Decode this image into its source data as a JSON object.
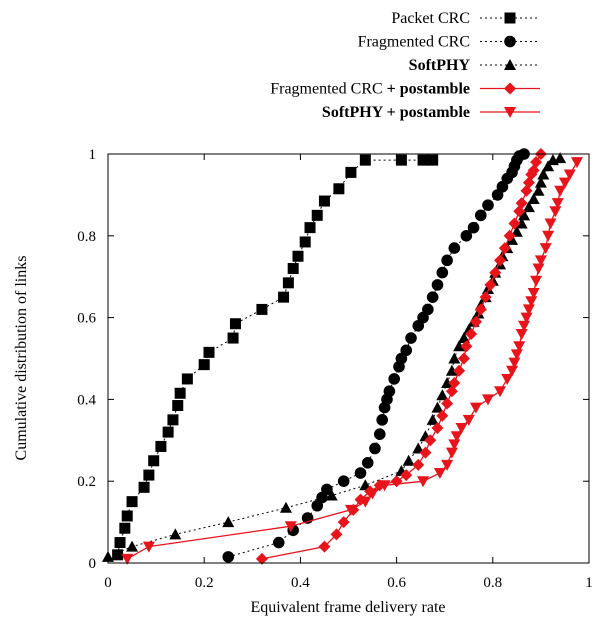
{
  "chart_data": {
    "type": "scatter",
    "title": "",
    "xlabel": "Equivalent frame delivery rate",
    "ylabel": "Cumulative distribution of links",
    "xlim": [
      0,
      1
    ],
    "ylim": [
      0,
      1
    ],
    "xticks": [
      "0",
      "0.2",
      "0.4",
      "0.6",
      "0.8",
      "1"
    ],
    "yticks": [
      "0",
      "0.2",
      "0.4",
      "0.6",
      "0.8",
      "1"
    ],
    "grid": false,
    "legend_position": "top-right",
    "series": [
      {
        "name": "Packet CRC",
        "legend_parts": [
          {
            "text": "Packet CRC",
            "bold": false
          }
        ],
        "marker": "square",
        "line": "dotted",
        "color": "#000000",
        "x": [
          0.02,
          0.025,
          0.035,
          0.04,
          0.05,
          0.075,
          0.085,
          0.095,
          0.11,
          0.125,
          0.135,
          0.145,
          0.15,
          0.165,
          0.2,
          0.21,
          0.26,
          0.265,
          0.32,
          0.365,
          0.375,
          0.385,
          0.395,
          0.41,
          0.42,
          0.435,
          0.45,
          0.48,
          0.505,
          0.535,
          0.61,
          0.655,
          0.675
        ],
        "y": [
          0.02,
          0.05,
          0.085,
          0.115,
          0.15,
          0.185,
          0.215,
          0.25,
          0.285,
          0.32,
          0.35,
          0.385,
          0.415,
          0.45,
          0.485,
          0.515,
          0.55,
          0.585,
          0.62,
          0.65,
          0.685,
          0.72,
          0.75,
          0.785,
          0.82,
          0.85,
          0.885,
          0.915,
          0.955,
          0.985,
          0.985,
          0.985,
          0.985
        ]
      },
      {
        "name": "Fragmented CRC",
        "legend_parts": [
          {
            "text": "Fragmented CRC",
            "bold": false
          }
        ],
        "marker": "circle",
        "line": "dotted",
        "color": "#000000",
        "x": [
          0.25,
          0.355,
          0.385,
          0.415,
          0.435,
          0.445,
          0.455,
          0.49,
          0.525,
          0.54,
          0.555,
          0.565,
          0.57,
          0.575,
          0.58,
          0.585,
          0.595,
          0.605,
          0.61,
          0.62,
          0.63,
          0.645,
          0.655,
          0.665,
          0.675,
          0.685,
          0.695,
          0.705,
          0.72,
          0.745,
          0.76,
          0.775,
          0.79,
          0.81,
          0.82,
          0.83,
          0.84,
          0.845,
          0.85,
          0.855,
          0.865
        ],
        "y": [
          0.015,
          0.05,
          0.08,
          0.11,
          0.14,
          0.16,
          0.18,
          0.2,
          0.22,
          0.245,
          0.28,
          0.315,
          0.35,
          0.38,
          0.4,
          0.42,
          0.45,
          0.48,
          0.5,
          0.52,
          0.55,
          0.58,
          0.6,
          0.62,
          0.65,
          0.68,
          0.71,
          0.74,
          0.77,
          0.8,
          0.82,
          0.85,
          0.875,
          0.9,
          0.92,
          0.94,
          0.955,
          0.97,
          0.985,
          0.995,
          1.0
        ]
      },
      {
        "name": "SoftPHY",
        "legend_parts": [
          {
            "text": "SoftPHY",
            "bold": true
          }
        ],
        "marker": "triangle-up",
        "line": "dotted",
        "color": "#000000",
        "x": [
          0.0,
          0.05,
          0.14,
          0.25,
          0.37,
          0.465,
          0.535,
          0.61,
          0.625,
          0.645,
          0.66,
          0.675,
          0.685,
          0.695,
          0.705,
          0.715,
          0.72,
          0.73,
          0.74,
          0.75,
          0.76,
          0.77,
          0.775,
          0.785,
          0.79,
          0.8,
          0.805,
          0.815,
          0.82,
          0.83,
          0.84,
          0.85,
          0.86,
          0.865,
          0.875,
          0.885,
          0.895,
          0.9,
          0.905,
          0.915,
          0.925,
          0.94
        ],
        "y": [
          0.015,
          0.04,
          0.07,
          0.1,
          0.135,
          0.165,
          0.19,
          0.225,
          0.25,
          0.28,
          0.31,
          0.35,
          0.38,
          0.41,
          0.44,
          0.47,
          0.5,
          0.53,
          0.55,
          0.57,
          0.59,
          0.61,
          0.63,
          0.65,
          0.67,
          0.69,
          0.71,
          0.73,
          0.75,
          0.77,
          0.79,
          0.81,
          0.83,
          0.85,
          0.87,
          0.89,
          0.91,
          0.93,
          0.95,
          0.97,
          0.985,
          0.99
        ]
      },
      {
        "name": "Fragmented CRC + postamble",
        "legend_parts": [
          {
            "text": "Fragmented CRC",
            "bold": false
          },
          {
            "text": " + postamble",
            "bold": true
          }
        ],
        "marker": "diamond",
        "line": "solid",
        "color": "#e8141b",
        "x": [
          0.32,
          0.45,
          0.475,
          0.49,
          0.51,
          0.525,
          0.545,
          0.565,
          0.6,
          0.62,
          0.645,
          0.66,
          0.67,
          0.685,
          0.695,
          0.705,
          0.715,
          0.72,
          0.73,
          0.74,
          0.745,
          0.755,
          0.765,
          0.775,
          0.785,
          0.795,
          0.805,
          0.815,
          0.825,
          0.835,
          0.845,
          0.855,
          0.86,
          0.87,
          0.875,
          0.88,
          0.885,
          0.89,
          0.9
        ],
        "y": [
          0.01,
          0.04,
          0.07,
          0.1,
          0.13,
          0.155,
          0.175,
          0.19,
          0.2,
          0.215,
          0.24,
          0.27,
          0.3,
          0.33,
          0.36,
          0.39,
          0.42,
          0.44,
          0.47,
          0.5,
          0.53,
          0.56,
          0.59,
          0.62,
          0.65,
          0.68,
          0.71,
          0.74,
          0.77,
          0.8,
          0.83,
          0.86,
          0.88,
          0.91,
          0.93,
          0.95,
          0.96,
          0.98,
          1.0
        ]
      },
      {
        "name": "SoftPHY + postamble",
        "legend_parts": [
          {
            "text": "SoftPHY + postamble",
            "bold": true
          }
        ],
        "marker": "triangle-down",
        "line": "solid",
        "color": "#e8141b",
        "x": [
          0.04,
          0.085,
          0.38,
          0.505,
          0.535,
          0.55,
          0.575,
          0.655,
          0.69,
          0.705,
          0.715,
          0.72,
          0.725,
          0.735,
          0.75,
          0.765,
          0.79,
          0.815,
          0.83,
          0.84,
          0.845,
          0.85,
          0.855,
          0.86,
          0.865,
          0.87,
          0.875,
          0.88,
          0.885,
          0.89,
          0.895,
          0.9,
          0.91,
          0.915,
          0.92,
          0.93,
          0.935,
          0.94,
          0.95,
          0.96,
          0.975
        ],
        "y": [
          0.01,
          0.04,
          0.09,
          0.13,
          0.15,
          0.17,
          0.19,
          0.2,
          0.22,
          0.24,
          0.27,
          0.29,
          0.31,
          0.33,
          0.35,
          0.38,
          0.4,
          0.42,
          0.45,
          0.47,
          0.49,
          0.51,
          0.53,
          0.56,
          0.58,
          0.6,
          0.62,
          0.64,
          0.66,
          0.69,
          0.72,
          0.74,
          0.77,
          0.8,
          0.83,
          0.86,
          0.88,
          0.91,
          0.93,
          0.95,
          0.98
        ]
      }
    ]
  }
}
